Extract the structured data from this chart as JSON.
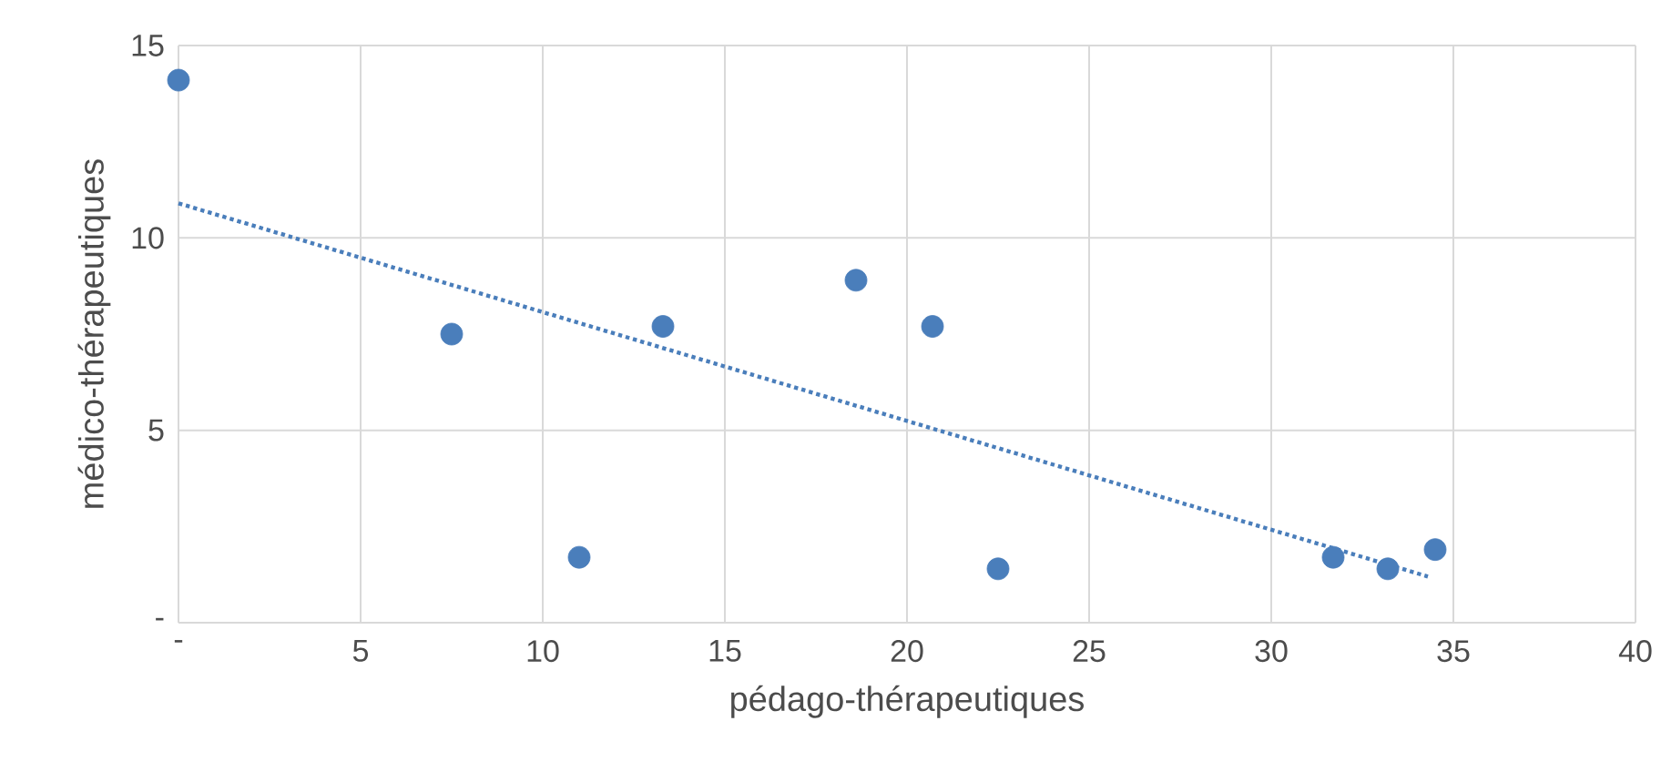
{
  "chart_data": {
    "type": "scatter",
    "xlabel": "pédago-thérapeutiques",
    "ylabel": "médico-thérapeutiques",
    "xlim": [
      0,
      40
    ],
    "ylim": [
      0,
      15
    ],
    "xticks": [
      {
        "value": 0,
        "label": "-"
      },
      5,
      10,
      15,
      20,
      25,
      30,
      35,
      40
    ],
    "yticks": [
      {
        "value": 0,
        "label": "-"
      },
      5,
      10,
      15
    ],
    "grid": true,
    "legend": false,
    "marker": "circle",
    "series": [
      {
        "color": "#4a7ebb",
        "x": [
          0,
          7.5,
          11,
          13.3,
          18.6,
          20.7,
          22.5,
          31.7,
          33.2,
          34.5
        ],
        "values": [
          14.1,
          7.5,
          1.7,
          7.7,
          8.9,
          7.7,
          1.4,
          1.7,
          1.4,
          1.9
        ]
      },
      {
        "type": "line",
        "color": "#4a7ebb",
        "line_style": "dotted",
        "marker": "none",
        "x": [
          0,
          34.3
        ],
        "values": [
          10.9,
          1.2
        ]
      }
    ]
  }
}
